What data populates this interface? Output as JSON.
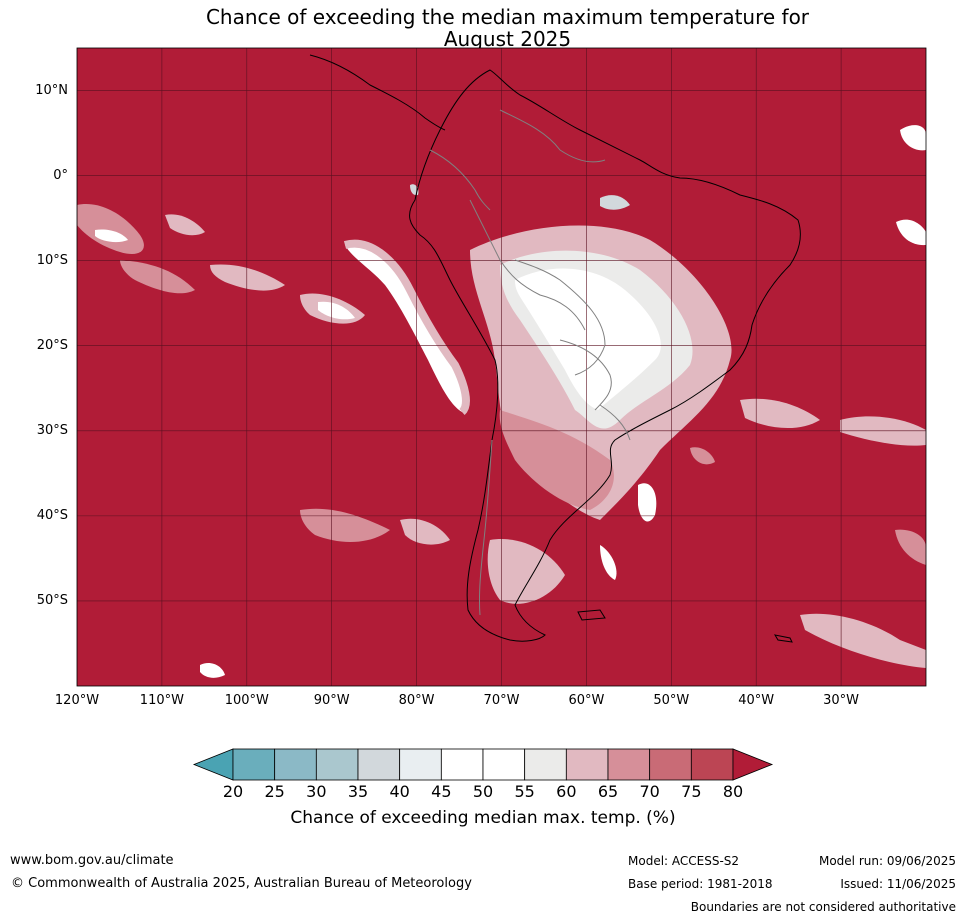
{
  "title": {
    "line1": "Chance of exceeding the median maximum temperature for",
    "line2": "August 2025"
  },
  "map": {
    "extent_lon": [
      -120,
      -20
    ],
    "extent_lat": [
      -60,
      15
    ],
    "lat_labels": [
      "10°N",
      "0°",
      "10°S",
      "20°S",
      "30°S",
      "40°S",
      "50°S"
    ],
    "lon_labels": [
      "120°W",
      "110°W",
      "100°W",
      "90°W",
      "80°W",
      "70°W",
      "60°W",
      "50°W",
      "40°W",
      "30°W"
    ],
    "background_color": "#b11c37",
    "grid": true
  },
  "colorbar": {
    "ticks": [
      "20",
      "25",
      "30",
      "35",
      "40",
      "45",
      "50",
      "55",
      "60",
      "65",
      "70",
      "75",
      "80"
    ],
    "colors": [
      "#4aa3b3",
      "#6aaebc",
      "#8bb9c6",
      "#aac7ce",
      "#d2d8dc",
      "#e9eef1",
      "#ffffff",
      "#ffffff",
      "#ebebea",
      "#e1b9c1",
      "#d68f99",
      "#c96b76",
      "#bc4554",
      "#b11c37"
    ],
    "label": "Chance of exceeding median max. temp. (%)"
  },
  "footer": {
    "website": "www.bom.gov.au/climate",
    "copyright": "© Commonwealth of Australia 2025, Australian Bureau of Meteorology",
    "model": "Model: ACCESS-S2",
    "base_period": "Base period: 1981-2018",
    "model_run": "Model run: 09/06/2025",
    "issued": "Issued: 11/06/2025",
    "disclaimer": "Boundaries are not considered authoritative"
  }
}
